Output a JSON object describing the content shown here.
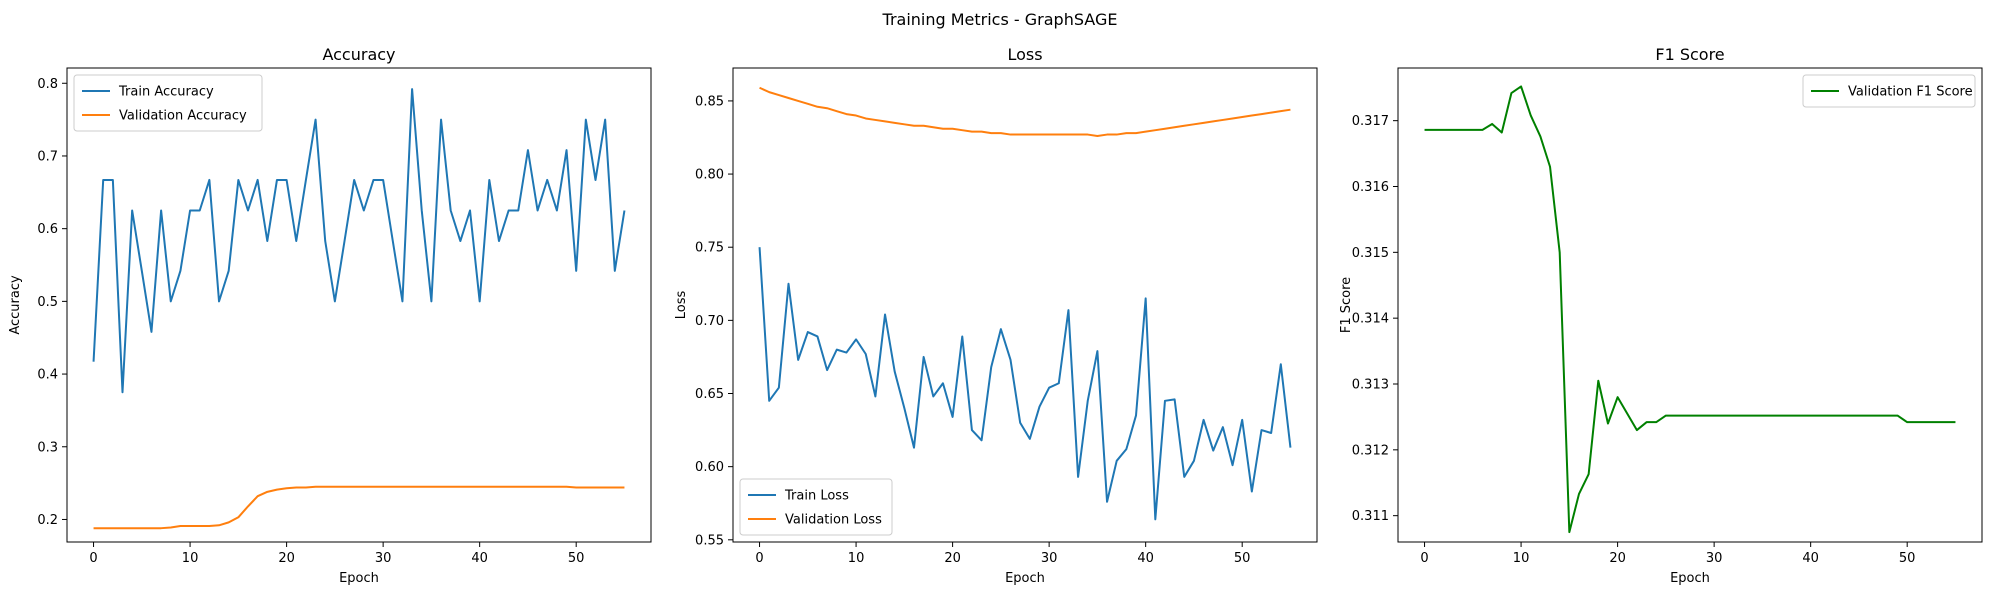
{
  "figure": {
    "suptitle": "Training Metrics - GraphSAGE"
  },
  "chart_data": [
    {
      "type": "line",
      "title": "Accuracy",
      "xlabel": "Epoch",
      "ylabel": "Accuracy",
      "xlim": [
        -2.75,
        57.75
      ],
      "ylim": [
        0.169,
        0.821
      ],
      "xticks": [
        0,
        10,
        20,
        30,
        40,
        50
      ],
      "yticks": [
        0.2,
        0.3,
        0.4,
        0.5,
        0.6,
        0.7,
        0.8
      ],
      "legend": "top-left",
      "x": [
        0,
        1,
        2,
        3,
        4,
        5,
        6,
        7,
        8,
        9,
        10,
        11,
        12,
        13,
        14,
        15,
        16,
        17,
        18,
        19,
        20,
        21,
        22,
        23,
        24,
        25,
        26,
        27,
        28,
        29,
        30,
        31,
        32,
        33,
        34,
        35,
        36,
        37,
        38,
        39,
        40,
        41,
        42,
        43,
        44,
        45,
        46,
        47,
        48,
        49,
        50,
        51,
        52,
        53,
        54,
        55
      ],
      "series": [
        {
          "name": "Train Accuracy",
          "color": "#1f77b4",
          "values": [
            0.417,
            0.667,
            0.667,
            0.375,
            0.625,
            0.542,
            0.458,
            0.625,
            0.5,
            0.542,
            0.625,
            0.625,
            0.667,
            0.5,
            0.542,
            0.667,
            0.625,
            0.667,
            0.583,
            0.667,
            0.667,
            0.583,
            0.667,
            0.75,
            0.583,
            0.5,
            0.583,
            0.667,
            0.625,
            0.667,
            0.667,
            0.583,
            0.5,
            0.792,
            0.625,
            0.5,
            0.75,
            0.625,
            0.583,
            0.625,
            0.5,
            0.667,
            0.583,
            0.625,
            0.625,
            0.708,
            0.625,
            0.667,
            0.625,
            0.708,
            0.542,
            0.75,
            0.667,
            0.75,
            0.542,
            0.625
          ]
        },
        {
          "name": "Validation Accuracy",
          "color": "#ff7f0e",
          "values": [
            0.188,
            0.188,
            0.188,
            0.188,
            0.188,
            0.188,
            0.188,
            0.188,
            0.189,
            0.191,
            0.191,
            0.191,
            0.191,
            0.192,
            0.196,
            0.203,
            0.218,
            0.232,
            0.238,
            0.241,
            0.243,
            0.244,
            0.244,
            0.245,
            0.245,
            0.245,
            0.245,
            0.245,
            0.245,
            0.245,
            0.245,
            0.245,
            0.245,
            0.245,
            0.245,
            0.245,
            0.245,
            0.245,
            0.245,
            0.245,
            0.245,
            0.245,
            0.245,
            0.245,
            0.245,
            0.245,
            0.245,
            0.245,
            0.245,
            0.245,
            0.244,
            0.244,
            0.244,
            0.244,
            0.244,
            0.244
          ]
        }
      ]
    },
    {
      "type": "line",
      "title": "Loss",
      "xlabel": "Epoch",
      "ylabel": "Loss",
      "xlim": [
        -2.75,
        57.75
      ],
      "ylim": [
        0.5485,
        0.8725
      ],
      "xticks": [
        0,
        10,
        20,
        30,
        40,
        50
      ],
      "yticks": [
        0.55,
        0.6,
        0.65,
        0.7,
        0.75,
        0.8,
        0.85
      ],
      "legend": "bottom-left",
      "x": [
        0,
        1,
        2,
        3,
        4,
        5,
        6,
        7,
        8,
        9,
        10,
        11,
        12,
        13,
        14,
        15,
        16,
        17,
        18,
        19,
        20,
        21,
        22,
        23,
        24,
        25,
        26,
        27,
        28,
        29,
        30,
        31,
        32,
        33,
        34,
        35,
        36,
        37,
        38,
        39,
        40,
        41,
        42,
        43,
        44,
        45,
        46,
        47,
        48,
        49,
        50,
        51,
        52,
        53,
        54,
        55
      ],
      "series": [
        {
          "name": "Train Loss",
          "color": "#1f77b4",
          "values": [
            0.75,
            0.645,
            0.654,
            0.725,
            0.673,
            0.692,
            0.689,
            0.666,
            0.68,
            0.678,
            0.687,
            0.677,
            0.648,
            0.704,
            0.665,
            0.64,
            0.613,
            0.675,
            0.648,
            0.657,
            0.634,
            0.689,
            0.625,
            0.618,
            0.668,
            0.694,
            0.673,
            0.63,
            0.619,
            0.641,
            0.654,
            0.657,
            0.707,
            0.593,
            0.645,
            0.679,
            0.576,
            0.604,
            0.612,
            0.635,
            0.715,
            0.564,
            0.645,
            0.646,
            0.593,
            0.604,
            0.632,
            0.611,
            0.627,
            0.601,
            0.632,
            0.583,
            0.625,
            0.623,
            0.67,
            0.613
          ]
        },
        {
          "name": "Validation Loss",
          "color": "#ff7f0e",
          "values": [
            0.859,
            0.856,
            0.854,
            0.852,
            0.85,
            0.848,
            0.846,
            0.845,
            0.843,
            0.841,
            0.84,
            0.838,
            0.837,
            0.836,
            0.835,
            0.834,
            0.833,
            0.833,
            0.832,
            0.831,
            0.831,
            0.83,
            0.829,
            0.829,
            0.828,
            0.828,
            0.827,
            0.827,
            0.827,
            0.827,
            0.827,
            0.827,
            0.827,
            0.827,
            0.827,
            0.826,
            0.827,
            0.827,
            0.828,
            0.828,
            0.829,
            0.83,
            0.831,
            0.832,
            0.833,
            0.834,
            0.835,
            0.836,
            0.837,
            0.838,
            0.839,
            0.84,
            0.841,
            0.842,
            0.843,
            0.844
          ]
        }
      ]
    },
    {
      "type": "line",
      "title": "F1 Score",
      "xlabel": "Epoch",
      "ylabel": "F1 Score",
      "xlim": [
        -2.75,
        57.75
      ],
      "ylim": [
        0.3106,
        0.3178
      ],
      "xticks": [
        0,
        10,
        20,
        30,
        40,
        50
      ],
      "yticks": [
        0.311,
        0.312,
        0.313,
        0.314,
        0.315,
        0.316,
        0.317
      ],
      "legend": "top-right",
      "x": [
        0,
        1,
        2,
        3,
        4,
        5,
        6,
        7,
        8,
        9,
        10,
        11,
        12,
        13,
        14,
        15,
        16,
        17,
        18,
        19,
        20,
        21,
        22,
        23,
        24,
        25,
        26,
        27,
        28,
        29,
        30,
        31,
        32,
        33,
        34,
        35,
        36,
        37,
        38,
        39,
        40,
        41,
        42,
        43,
        44,
        45,
        46,
        47,
        48,
        49,
        50,
        51,
        52,
        53,
        54,
        55
      ],
      "series": [
        {
          "name": "Validation F1 Score",
          "color": "#008000",
          "values": [
            0.31686,
            0.31686,
            0.31686,
            0.31686,
            0.31686,
            0.31686,
            0.31686,
            0.31695,
            0.31682,
            0.31742,
            0.31752,
            0.31708,
            0.31676,
            0.3163,
            0.315,
            0.31075,
            0.31133,
            0.31163,
            0.31305,
            0.3124,
            0.3128,
            0.31255,
            0.3123,
            0.31242,
            0.31242,
            0.31252,
            0.31252,
            0.31252,
            0.31252,
            0.31252,
            0.31252,
            0.31252,
            0.31252,
            0.31252,
            0.31252,
            0.31252,
            0.31252,
            0.31252,
            0.31252,
            0.31252,
            0.31252,
            0.31252,
            0.31252,
            0.31252,
            0.31252,
            0.31252,
            0.31252,
            0.31252,
            0.31252,
            0.31252,
            0.31242,
            0.31242,
            0.31242,
            0.31242,
            0.31242,
            0.31242
          ]
        }
      ]
    }
  ]
}
